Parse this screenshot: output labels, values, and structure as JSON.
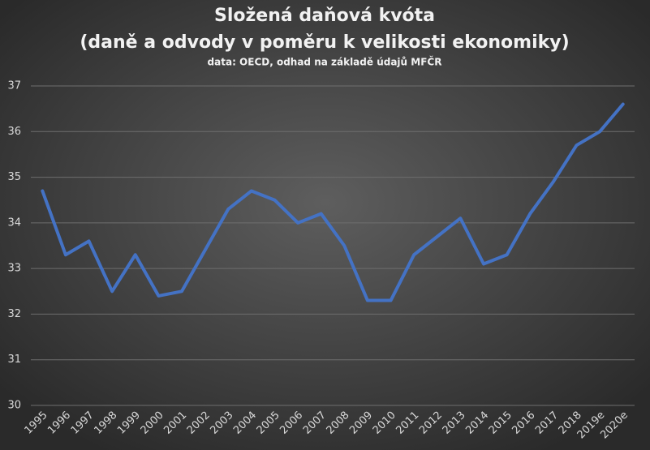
{
  "chart_data": {
    "type": "line",
    "title": "Složená daňová kvóta",
    "subtitle": "(daně a odvody v poměru k velikosti ekonomiky)",
    "note": "data: OECD, odhad na základě údajů MFČR",
    "categories": [
      "1995",
      "1996",
      "1997",
      "1998",
      "1999",
      "2000",
      "2001",
      "2002",
      "2003",
      "2004",
      "2005",
      "2006",
      "2007",
      "2008",
      "2009",
      "2010",
      "2011",
      "2012",
      "2013",
      "2014",
      "2015",
      "2016",
      "2017",
      "2018",
      "2019e",
      "2020e"
    ],
    "values": [
      34.7,
      33.3,
      33.6,
      32.5,
      33.3,
      32.4,
      32.5,
      33.4,
      34.3,
      34.7,
      34.5,
      34.0,
      34.2,
      33.5,
      32.3,
      32.3,
      33.3,
      33.7,
      34.1,
      33.1,
      33.3,
      34.2,
      34.9,
      35.7,
      36.0,
      36.6
    ],
    "color": "#4472c4",
    "ylim": [
      30,
      37
    ],
    "yticks": [
      30,
      31,
      32,
      33,
      34,
      35,
      36,
      37
    ],
    "grid": true
  }
}
